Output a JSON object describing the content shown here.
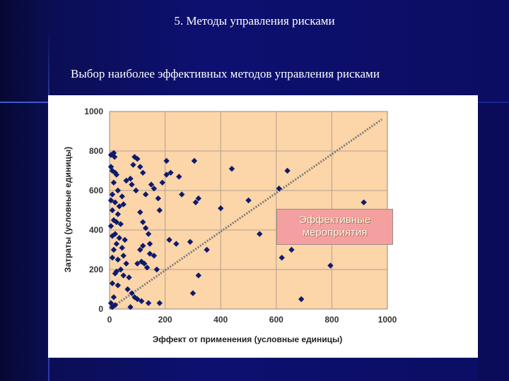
{
  "slide": {
    "title": "5. Методы управления рисками",
    "subtitle": "Выбор наиболее эффективных методов управления рисками"
  },
  "annotation": {
    "line1": "Эффективные",
    "line2": "мероприятия"
  },
  "colors": {
    "background": "#0d1070",
    "plot_area": "#fcd5a8",
    "markers": "#0e1a6e",
    "trend_line": "#7a7a7a",
    "annotation_fill": "#f4a0a0"
  },
  "chart_data": {
    "type": "scatter",
    "title": "",
    "xlabel": "Эффект от применения (условные единицы)",
    "ylabel": "Затраты (условные единицы)",
    "xlim": [
      0,
      1000
    ],
    "ylim": [
      0,
      1000
    ],
    "x_ticks": [
      0,
      200,
      400,
      600,
      800,
      1000
    ],
    "y_ticks": [
      0,
      200,
      400,
      600,
      800,
      1000
    ],
    "grid": true,
    "reference_line": {
      "from": [
        0,
        0
      ],
      "to": [
        980,
        960
      ],
      "style": "dotted"
    },
    "points": [
      [
        5,
        780
      ],
      [
        15,
        790
      ],
      [
        18,
        770
      ],
      [
        10,
        700
      ],
      [
        20,
        690
      ],
      [
        25,
        680
      ],
      [
        5,
        720
      ],
      [
        15,
        640
      ],
      [
        30,
        600
      ],
      [
        10,
        580
      ],
      [
        5,
        550
      ],
      [
        20,
        540
      ],
      [
        35,
        520
      ],
      [
        45,
        570
      ],
      [
        50,
        530
      ],
      [
        10,
        500
      ],
      [
        30,
        480
      ],
      [
        15,
        450
      ],
      [
        25,
        440
      ],
      [
        5,
        420
      ],
      [
        40,
        430
      ],
      [
        20,
        380
      ],
      [
        10,
        370
      ],
      [
        35,
        360
      ],
      [
        25,
        330
      ],
      [
        55,
        350
      ],
      [
        15,
        300
      ],
      [
        45,
        310
      ],
      [
        10,
        260
      ],
      [
        30,
        250
      ],
      [
        50,
        270
      ],
      [
        60,
        230
      ],
      [
        40,
        200
      ],
      [
        25,
        190
      ],
      [
        20,
        180
      ],
      [
        50,
        170
      ],
      [
        70,
        160
      ],
      [
        10,
        130
      ],
      [
        30,
        120
      ],
      [
        65,
        100
      ],
      [
        80,
        80
      ],
      [
        15,
        60
      ],
      [
        5,
        30
      ],
      [
        20,
        20
      ],
      [
        10,
        10
      ],
      [
        75,
        10
      ],
      [
        90,
        60
      ],
      [
        100,
        50
      ],
      [
        115,
        40
      ],
      [
        140,
        30
      ],
      [
        90,
        770
      ],
      [
        100,
        760
      ],
      [
        85,
        730
      ],
      [
        110,
        720
      ],
      [
        120,
        690
      ],
      [
        75,
        660
      ],
      [
        60,
        650
      ],
      [
        80,
        630
      ],
      [
        95,
        600
      ],
      [
        130,
        580
      ],
      [
        150,
        630
      ],
      [
        160,
        610
      ],
      [
        175,
        560
      ],
      [
        180,
        500
      ],
      [
        190,
        640
      ],
      [
        205,
        680
      ],
      [
        205,
        750
      ],
      [
        220,
        690
      ],
      [
        250,
        670
      ],
      [
        260,
        580
      ],
      [
        305,
        750
      ],
      [
        310,
        540
      ],
      [
        320,
        560
      ],
      [
        110,
        490
      ],
      [
        120,
        440
      ],
      [
        130,
        410
      ],
      [
        140,
        380
      ],
      [
        145,
        330
      ],
      [
        120,
        320
      ],
      [
        110,
        300
      ],
      [
        145,
        280
      ],
      [
        160,
        270
      ],
      [
        115,
        240
      ],
      [
        125,
        230
      ],
      [
        100,
        230
      ],
      [
        135,
        210
      ],
      [
        170,
        200
      ],
      [
        180,
        30
      ],
      [
        215,
        350
      ],
      [
        240,
        330
      ],
      [
        290,
        340
      ],
      [
        300,
        80
      ],
      [
        320,
        170
      ],
      [
        350,
        300
      ],
      [
        400,
        510
      ],
      [
        440,
        710
      ],
      [
        500,
        550
      ],
      [
        540,
        380
      ],
      [
        610,
        610
      ],
      [
        620,
        260
      ],
      [
        640,
        700
      ],
      [
        655,
        300
      ],
      [
        690,
        50
      ],
      [
        795,
        220
      ],
      [
        915,
        540
      ]
    ]
  }
}
